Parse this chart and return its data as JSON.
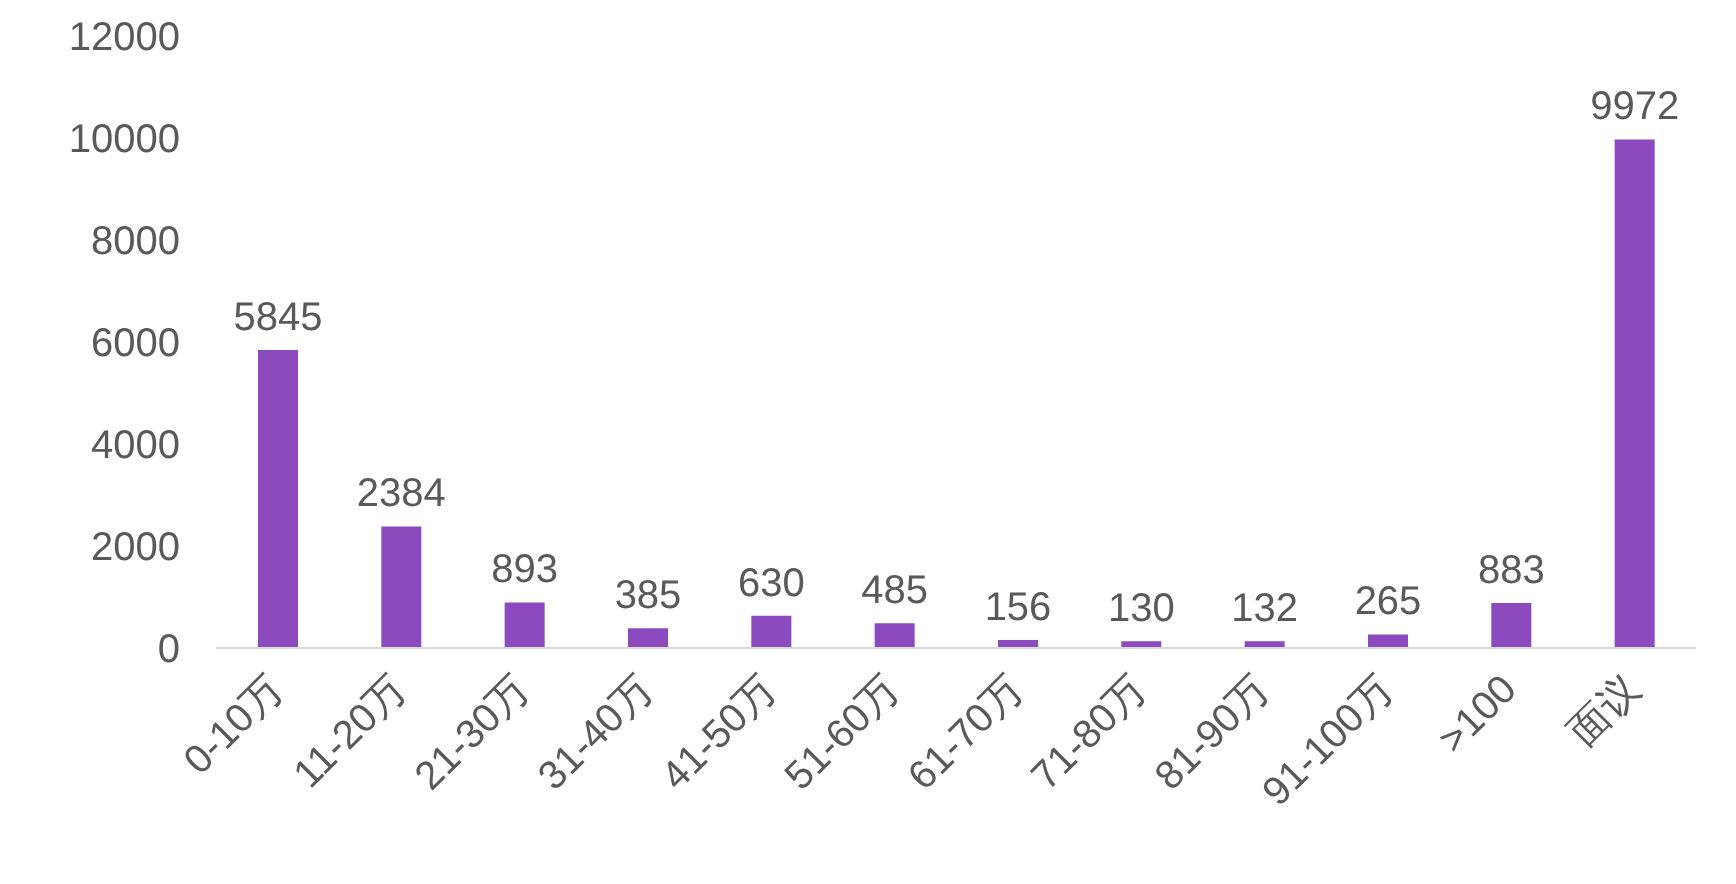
{
  "chart_data": {
    "type": "bar",
    "categories": [
      "0-10万",
      "11-20万",
      "21-30万",
      "31-40万",
      "41-50万",
      "51-60万",
      "61-70万",
      "71-80万",
      "81-90万",
      "91-100万",
      ">100",
      "面议"
    ],
    "values": [
      5845,
      2384,
      893,
      385,
      630,
      485,
      156,
      130,
      132,
      265,
      883,
      9972
    ],
    "color": "#8b4bbf",
    "ylim": [
      0,
      12000
    ],
    "yticks": [
      0,
      2000,
      4000,
      6000,
      8000,
      10000,
      12000
    ],
    "data_labels": true
  }
}
